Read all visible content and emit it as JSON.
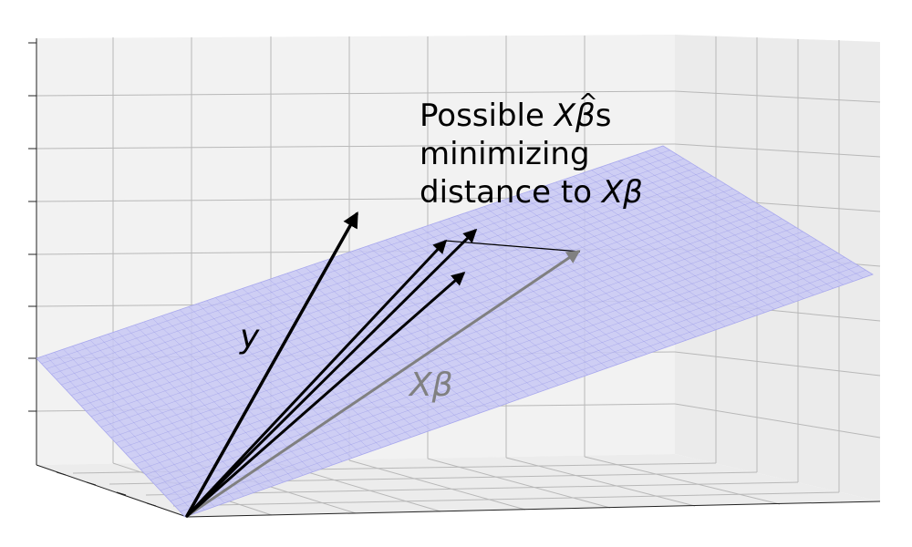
{
  "annotation": {
    "line1_prefix": "Possible ",
    "line1_math_x": "X",
    "line1_math_beta": "β",
    "line1_hat": "^",
    "line1_suffix": "s",
    "line2": "minimizing",
    "line3_prefix": "distance to ",
    "line3_math": "Xβ"
  },
  "vectors": {
    "y_label": "y",
    "xbeta_label": "Xβ"
  },
  "colors": {
    "plane_fill": "#c8c8f5",
    "plane_mesh": "#8a8ae6",
    "pane_fill": "#f2f2f2",
    "grid": "#b0b0b0",
    "y_arrow": "#000000",
    "candidate_arrows": "#000000",
    "xbeta_arrow": "#808080"
  }
}
